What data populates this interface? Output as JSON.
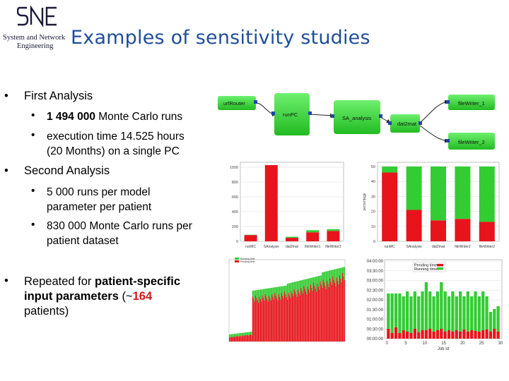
{
  "logo": {
    "mark": "SNE",
    "line1": "System and Network",
    "line2": "Engineering"
  },
  "title": "Examples of sensitivity studies",
  "bullets": {
    "b1": {
      "label": "First Analysis"
    },
    "b1a": {
      "pre": "1 494 000",
      "post": " Monte Carlo runs"
    },
    "b1b": {
      "line1": "execution time 14.525 hours",
      "line2": "(20 Months) on a single PC"
    },
    "b2": {
      "label": "Second Analysis"
    },
    "b2a": {
      "line1": "5 000 runs per model",
      "line2": "parameter per patient"
    },
    "b2b": {
      "line1": "830 000 Monte Carlo runs per",
      "line2": "patient dataset"
    },
    "b3": {
      "pre": "Repeated for ",
      "bold1": "patient-specific",
      "bold2": "input parameters",
      "mid": "  (~",
      "num": "164",
      "line3": "patients)"
    }
  },
  "workflow": {
    "nodes": [
      "urlRouter",
      "runPC",
      "SA_analysis",
      "dat2mat",
      "fileWriter_1",
      "fileWriter_2"
    ]
  },
  "chart1": {
    "categories": [
      "runMC",
      "SAnalysis",
      "dat2mat",
      "fileWriter1",
      "fileWriter2"
    ],
    "ylim": [
      0,
      1100
    ],
    "yticks": [
      "1000",
      "800",
      "600",
      "400",
      "200",
      "0"
    ],
    "red": [
      90,
      1100,
      50,
      130,
      150
    ],
    "green": [
      5,
      0,
      15,
      30,
      25
    ]
  },
  "chart2": {
    "ylabel": "percentage",
    "categories": [
      "runMC",
      "SAnalysis",
      "dat2mat",
      "fileWriter2",
      "fileWriter2"
    ],
    "yticks": [
      "50",
      "40",
      "30",
      "20",
      "10",
      "0"
    ],
    "ylim": [
      0,
      50
    ],
    "red": [
      46,
      21,
      14,
      15,
      13
    ],
    "green": [
      4,
      29,
      36,
      35,
      37
    ]
  },
  "chart3": {
    "legend": [
      "Running time",
      "Pending time"
    ]
  },
  "chart4": {
    "legend": [
      "Pending time",
      "Running time"
    ],
    "yticks": [
      "04:00:00",
      "03:30:00",
      "03:00:00",
      "02:30:00",
      "02:00:00",
      "01:30:00",
      "01:00:00",
      "00:30:00",
      "00:00:00"
    ],
    "xticks": [
      "0",
      "5",
      "10",
      "15",
      "20",
      "25",
      "30"
    ],
    "xlabel": "Job Id"
  },
  "colors": {
    "title": "#1f4e9a",
    "red": "#e8141c",
    "green": "#33cc33",
    "node": "#44dd44"
  }
}
